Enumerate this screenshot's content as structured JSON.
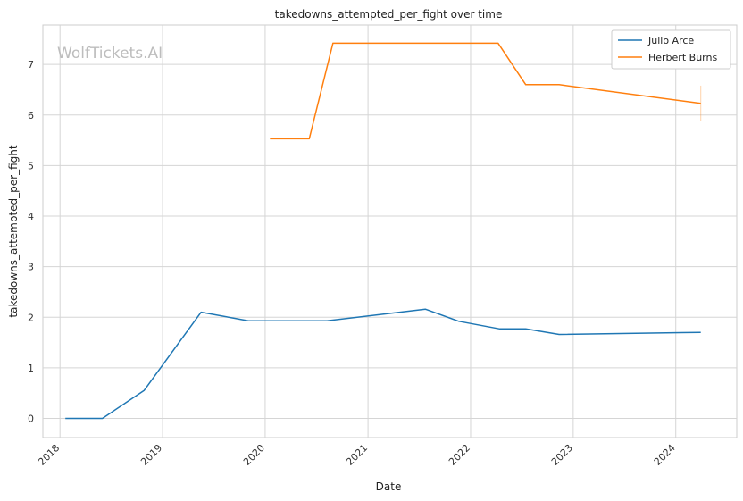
{
  "chart_data": {
    "type": "line",
    "title": "takedowns_attempted_per_fight over time",
    "xlabel": "Date",
    "ylabel": "takedowns_attempted_per_fight",
    "watermark": "WolfTickets.AI",
    "x_ticks": [
      "2018",
      "2019",
      "2020",
      "2021",
      "2022",
      "2023",
      "2024"
    ],
    "y_ticks": [
      0,
      1,
      2,
      3,
      4,
      5,
      6,
      7
    ],
    "xlim": [
      "2017-11-01",
      "2024-08-05"
    ],
    "ylim": [
      -0.38,
      7.78
    ],
    "grid": true,
    "legend_position": "top-right",
    "series": [
      {
        "name": "Julio Arce",
        "color": "#1f77b4",
        "points": [
          {
            "x": "2018-01-20",
            "y": 0.0
          },
          {
            "x": "2018-06-01",
            "y": 0.0
          },
          {
            "x": "2018-10-27",
            "y": 0.55
          },
          {
            "x": "2019-05-18",
            "y": 2.1
          },
          {
            "x": "2019-11-02",
            "y": 1.93
          },
          {
            "x": "2020-08-08",
            "y": 1.93
          },
          {
            "x": "2021-07-24",
            "y": 2.16
          },
          {
            "x": "2021-11-20",
            "y": 1.92
          },
          {
            "x": "2022-04-15",
            "y": 1.77
          },
          {
            "x": "2022-07-16",
            "y": 1.77
          },
          {
            "x": "2022-11-12",
            "y": 1.66
          },
          {
            "x": "2024-03-30",
            "y": 1.7
          }
        ]
      },
      {
        "name": "Herbert Burns",
        "color": "#ff7f0e",
        "points": [
          {
            "x": "2020-01-18",
            "y": 5.53
          },
          {
            "x": "2020-06-06",
            "y": 5.53
          },
          {
            "x": "2020-08-29",
            "y": 7.42
          },
          {
            "x": "2022-04-09",
            "y": 7.42
          },
          {
            "x": "2022-07-16",
            "y": 6.6
          },
          {
            "x": "2022-11-12",
            "y": 6.6
          },
          {
            "x": "2024-03-30",
            "y": 6.23
          }
        ]
      }
    ]
  }
}
